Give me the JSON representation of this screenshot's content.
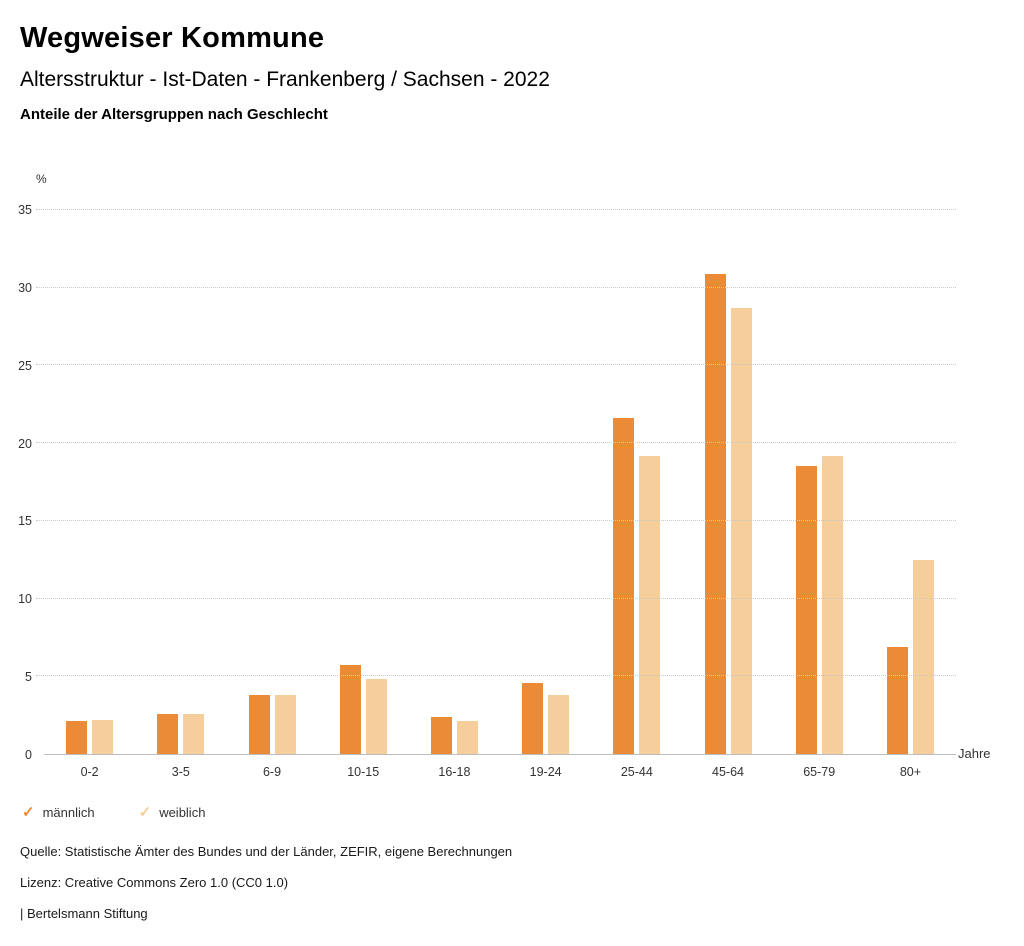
{
  "header": {
    "title": "Wegweiser Kommune",
    "subtitle": "Altersstruktur - Ist-Daten - Frankenberg / Sachsen - 2022",
    "chart_heading": "Anteile der Altersgruppen nach Geschlecht"
  },
  "chart_data": {
    "type": "bar",
    "title": "Anteile der Altersgruppen nach Geschlecht",
    "categories": [
      "0-2",
      "3-5",
      "6-9",
      "10-15",
      "16-18",
      "19-24",
      "25-44",
      "45-64",
      "65-79",
      "80+"
    ],
    "series": [
      {
        "name": "männlich",
        "color": "#EC8B36",
        "values": [
          2.1,
          2.6,
          3.8,
          5.7,
          2.4,
          4.6,
          21.6,
          30.9,
          18.5,
          6.9
        ]
      },
      {
        "name": "weiblich",
        "color": "#F6CE9C",
        "values": [
          2.2,
          2.6,
          3.8,
          4.8,
          2.1,
          3.8,
          19.2,
          28.7,
          19.2,
          12.5
        ]
      }
    ],
    "xlabel": "Jahre",
    "ylabel": "%",
    "ylim": [
      0,
      35
    ],
    "yticks": [
      0,
      5,
      10,
      15,
      20,
      25,
      30,
      35
    ],
    "grid": true,
    "grid_style": "dotted",
    "legend_position": "bottom-left",
    "legend_marker": "✓"
  },
  "footer": {
    "source": "Quelle: Statistische Ämter des Bundes und der Länder, ZEFIR, eigene Berechnungen",
    "license": "Lizenz: Creative Commons Zero 1.0 (CC0 1.0)",
    "attribution": "| Bertelsmann Stiftung"
  }
}
